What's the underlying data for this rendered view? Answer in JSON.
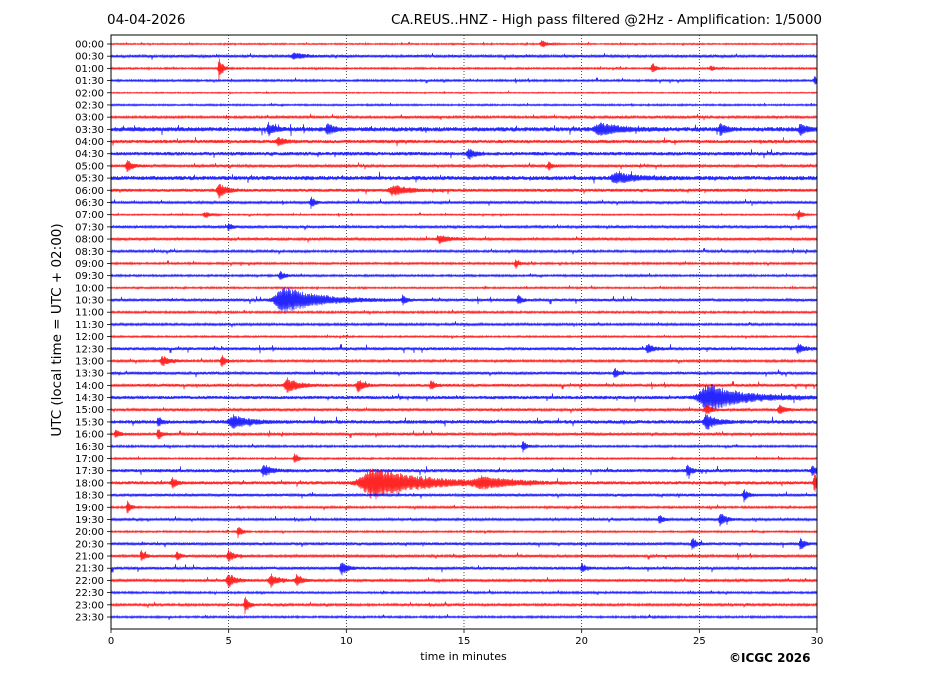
{
  "header": {
    "date": "04-04-2026",
    "title": "CA.REUS..HNZ - High pass filtered @2Hz - Amplification: 1/5000"
  },
  "footer": {
    "copyright": "©ICGC 2026"
  },
  "chart_data": {
    "type": "line",
    "title": "CA.REUS..HNZ - High pass filtered @2Hz - Amplification: 1/5000",
    "xlabel": "time in minutes",
    "ylabel": "UTC (local time = UTC + 02:00)",
    "xlim": [
      0,
      30
    ],
    "xticks": [
      "0",
      "5",
      "10",
      "15",
      "20",
      "25",
      "30"
    ],
    "grid": "vertical dotted at 5-minute intervals",
    "colors": {
      "even_rows": "#ff0000",
      "odd_rows": "#0000ff"
    },
    "row_labels": [
      "00:00",
      "00:30",
      "01:00",
      "01:30",
      "02:00",
      "02:30",
      "03:00",
      "03:30",
      "04:00",
      "04:30",
      "05:00",
      "05:30",
      "06:00",
      "06:30",
      "07:00",
      "07:30",
      "08:00",
      "08:30",
      "09:00",
      "09:30",
      "10:00",
      "10:30",
      "11:00",
      "11:30",
      "12:00",
      "12:30",
      "13:00",
      "13:30",
      "14:00",
      "14:30",
      "15:00",
      "15:30",
      "16:00",
      "16:30",
      "17:00",
      "17:30",
      "18:00",
      "18:30",
      "19:00",
      "19:30",
      "20:00",
      "20:30",
      "21:00",
      "21:30",
      "22:00",
      "22:30",
      "23:00",
      "23:30"
    ],
    "noise_levels": [
      0.5,
      0.9,
      0.6,
      0.7,
      0.4,
      0.6,
      0.8,
      1.6,
      1.2,
      1.3,
      0.9,
      1.5,
      1.1,
      0.9,
      0.5,
      0.9,
      0.9,
      0.8,
      0.7,
      0.7,
      0.6,
      1.0,
      0.7,
      0.8,
      0.6,
      1.1,
      0.8,
      1.0,
      1.0,
      1.2,
      0.9,
      1.3,
      0.9,
      0.7,
      0.6,
      1.2,
      1.2,
      1.0,
      0.7,
      0.9,
      0.6,
      1.0,
      0.9,
      1.0,
      0.9,
      0.7,
      0.8,
      0.7
    ],
    "events": [
      {
        "row": 0,
        "minute": 18.3,
        "amp": 4,
        "dur": 0.3
      },
      {
        "row": 2,
        "minute": 4.6,
        "amp": 12,
        "dur": 0.2
      },
      {
        "row": 2,
        "minute": 23.0,
        "amp": 6,
        "dur": 0.2
      },
      {
        "row": 2,
        "minute": 25.5,
        "amp": 3,
        "dur": 0.2
      },
      {
        "row": 1,
        "minute": 7.8,
        "amp": 3,
        "dur": 0.6
      },
      {
        "row": 3,
        "minute": 29.9,
        "amp": 4,
        "dur": 0.2
      },
      {
        "row": 7,
        "minute": 6.7,
        "amp": 6,
        "dur": 0.3
      },
      {
        "row": 7,
        "minute": 9.2,
        "amp": 6,
        "dur": 0.3
      },
      {
        "row": 7,
        "minute": 20.8,
        "amp": 6,
        "dur": 1.0
      },
      {
        "row": 7,
        "minute": 25.9,
        "amp": 6,
        "dur": 0.3
      },
      {
        "row": 7,
        "minute": 29.3,
        "amp": 6,
        "dur": 0.3
      },
      {
        "row": 8,
        "minute": 7.1,
        "amp": 5,
        "dur": 0.3
      },
      {
        "row": 9,
        "minute": 15.2,
        "amp": 6,
        "dur": 0.3
      },
      {
        "row": 10,
        "minute": 0.7,
        "amp": 6,
        "dur": 0.3
      },
      {
        "row": 10,
        "minute": 18.6,
        "amp": 5,
        "dur": 0.2
      },
      {
        "row": 11,
        "minute": 21.5,
        "amp": 5,
        "dur": 1.0
      },
      {
        "row": 12,
        "minute": 4.6,
        "amp": 7,
        "dur": 0.4
      },
      {
        "row": 12,
        "minute": 12.0,
        "amp": 5,
        "dur": 0.8
      },
      {
        "row": 13,
        "minute": 8.5,
        "amp": 6,
        "dur": 0.2
      },
      {
        "row": 14,
        "minute": 29.2,
        "amp": 6,
        "dur": 0.2
      },
      {
        "row": 14,
        "minute": 4.0,
        "amp": 3,
        "dur": 0.3
      },
      {
        "row": 15,
        "minute": 5.0,
        "amp": 4,
        "dur": 0.2
      },
      {
        "row": 16,
        "minute": 14.0,
        "amp": 4,
        "dur": 0.6
      },
      {
        "row": 18,
        "minute": 17.2,
        "amp": 5,
        "dur": 0.2
      },
      {
        "row": 19,
        "minute": 7.2,
        "amp": 4,
        "dur": 0.3
      },
      {
        "row": 21,
        "minute": 7.4,
        "amp": 13,
        "dur": 1.8
      },
      {
        "row": 21,
        "minute": 12.4,
        "amp": 5,
        "dur": 0.2
      },
      {
        "row": 21,
        "minute": 17.3,
        "amp": 5,
        "dur": 0.2
      },
      {
        "row": 25,
        "minute": 22.8,
        "amp": 5,
        "dur": 0.3
      },
      {
        "row": 25,
        "minute": 29.2,
        "amp": 5,
        "dur": 0.3
      },
      {
        "row": 26,
        "minute": 4.7,
        "amp": 7,
        "dur": 0.2
      },
      {
        "row": 26,
        "minute": 2.2,
        "amp": 5,
        "dur": 0.4
      },
      {
        "row": 27,
        "minute": 21.4,
        "amp": 6,
        "dur": 0.2
      },
      {
        "row": 28,
        "minute": 7.5,
        "amp": 7,
        "dur": 0.6
      },
      {
        "row": 28,
        "minute": 10.5,
        "amp": 7,
        "dur": 0.3
      },
      {
        "row": 28,
        "minute": 13.6,
        "amp": 6,
        "dur": 0.2
      },
      {
        "row": 29,
        "minute": 25.4,
        "amp": 14,
        "dur": 1.8
      },
      {
        "row": 30,
        "minute": 25.3,
        "amp": 6,
        "dur": 0.3
      },
      {
        "row": 30,
        "minute": 28.4,
        "amp": 5,
        "dur": 0.3
      },
      {
        "row": 31,
        "minute": 5.2,
        "amp": 7,
        "dur": 0.8
      },
      {
        "row": 31,
        "minute": 25.3,
        "amp": 8,
        "dur": 0.5
      },
      {
        "row": 31,
        "minute": 2.0,
        "amp": 5,
        "dur": 0.2
      },
      {
        "row": 32,
        "minute": 2.0,
        "amp": 6,
        "dur": 0.2
      },
      {
        "row": 32,
        "minute": 0.2,
        "amp": 5,
        "dur": 0.2
      },
      {
        "row": 33,
        "minute": 17.5,
        "amp": 6,
        "dur": 0.2
      },
      {
        "row": 34,
        "minute": 7.8,
        "amp": 6,
        "dur": 0.2
      },
      {
        "row": 35,
        "minute": 6.5,
        "amp": 6,
        "dur": 0.4
      },
      {
        "row": 35,
        "minute": 24.5,
        "amp": 7,
        "dur": 0.2
      },
      {
        "row": 35,
        "minute": 29.8,
        "amp": 6,
        "dur": 0.2
      },
      {
        "row": 36,
        "minute": 11.2,
        "amp": 16,
        "dur": 2.4
      },
      {
        "row": 36,
        "minute": 15.8,
        "amp": 5,
        "dur": 1.5
      },
      {
        "row": 36,
        "minute": 29.9,
        "amp": 12,
        "dur": 0.2
      },
      {
        "row": 36,
        "minute": 2.6,
        "amp": 6,
        "dur": 0.2
      },
      {
        "row": 37,
        "minute": 26.9,
        "amp": 6,
        "dur": 0.2
      },
      {
        "row": 38,
        "minute": 0.7,
        "amp": 7,
        "dur": 0.2
      },
      {
        "row": 39,
        "minute": 25.9,
        "amp": 7,
        "dur": 0.3
      },
      {
        "row": 39,
        "minute": 23.3,
        "amp": 5,
        "dur": 0.2
      },
      {
        "row": 40,
        "minute": 5.4,
        "amp": 6,
        "dur": 0.2
      },
      {
        "row": 41,
        "minute": 24.7,
        "amp": 7,
        "dur": 0.2
      },
      {
        "row": 41,
        "minute": 29.3,
        "amp": 7,
        "dur": 0.2
      },
      {
        "row": 42,
        "minute": 1.3,
        "amp": 6,
        "dur": 0.2
      },
      {
        "row": 42,
        "minute": 2.8,
        "amp": 5,
        "dur": 0.2
      },
      {
        "row": 42,
        "minute": 5.0,
        "amp": 6,
        "dur": 0.3
      },
      {
        "row": 43,
        "minute": 9.8,
        "amp": 7,
        "dur": 0.3
      },
      {
        "row": 43,
        "minute": 20.0,
        "amp": 5,
        "dur": 0.2
      },
      {
        "row": 44,
        "minute": 5.0,
        "amp": 7,
        "dur": 0.4
      },
      {
        "row": 44,
        "minute": 6.8,
        "amp": 7,
        "dur": 0.4
      },
      {
        "row": 44,
        "minute": 7.9,
        "amp": 6,
        "dur": 0.3
      },
      {
        "row": 46,
        "minute": 5.7,
        "amp": 9,
        "dur": 0.2
      }
    ]
  }
}
